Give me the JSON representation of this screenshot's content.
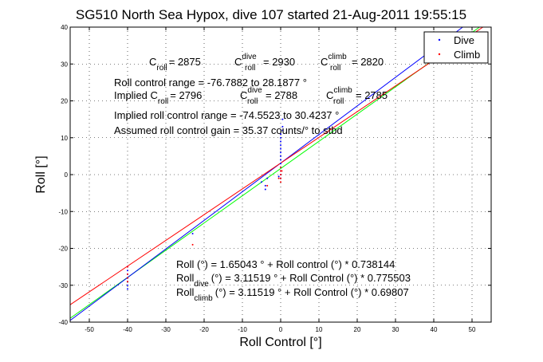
{
  "chart_data": {
    "type": "scatter",
    "title": "SG510 North Sea Hypox, dive 107 started 21-Aug-2011 19:55:15",
    "xlabel": "Roll Control [°]",
    "ylabel": "Roll [°]",
    "xlim": [
      -55,
      55
    ],
    "ylim": [
      -40,
      40
    ],
    "xticks": [
      -50,
      -40,
      -30,
      -20,
      -10,
      0,
      10,
      20,
      30,
      40,
      50
    ],
    "yticks": [
      -40,
      -30,
      -20,
      -10,
      0,
      10,
      20,
      30,
      40
    ],
    "grid": true,
    "legend_position": "top-right",
    "legend": [
      {
        "label": "Dive",
        "color": "#0000ff"
      },
      {
        "label": "Climb",
        "color": "#ff0000"
      }
    ],
    "series": [
      {
        "name": "Dive",
        "color": "#0000ff",
        "points": [
          [
            -40,
            -25
          ],
          [
            -40,
            -26
          ],
          [
            -40,
            -27
          ],
          [
            -40,
            -28
          ],
          [
            -40,
            -29
          ],
          [
            -40,
            -30
          ],
          [
            -40,
            -31
          ],
          [
            -23,
            -16
          ],
          [
            -5,
            -2
          ],
          [
            -4,
            -3
          ],
          [
            -4,
            -4
          ],
          [
            -3.5,
            -1
          ],
          [
            -0.5,
            -0.5
          ],
          [
            0,
            -1
          ],
          [
            0,
            0
          ],
          [
            0,
            1
          ],
          [
            0,
            2
          ],
          [
            0,
            3
          ],
          [
            0,
            4
          ],
          [
            0,
            5
          ],
          [
            0,
            6
          ],
          [
            0,
            7
          ],
          [
            0,
            8
          ],
          [
            0,
            9
          ],
          [
            0,
            10
          ],
          [
            0,
            11
          ],
          [
            0.5,
            12
          ],
          [
            0.5,
            13
          ],
          [
            0.5,
            15
          ]
        ]
      },
      {
        "name": "Climb",
        "color": "#ff0000",
        "points": [
          [
            -40,
            -25
          ],
          [
            -40,
            -27
          ],
          [
            -40,
            -28
          ],
          [
            -40,
            -29
          ],
          [
            -23,
            -19
          ],
          [
            -3.5,
            -3
          ],
          [
            -0.5,
            -1
          ],
          [
            0,
            -2
          ],
          [
            0,
            -1
          ],
          [
            0,
            0
          ],
          [
            0,
            1
          ],
          [
            0,
            2
          ],
          [
            0.3,
            1
          ]
        ]
      }
    ],
    "fit_lines": [
      {
        "name": "Roll fit",
        "color": "#00ff00",
        "intercept": 1.65043,
        "slope": 0.738144
      },
      {
        "name": "Dive fit",
        "color": "#0000ff",
        "intercept": 3.11519,
        "slope": 0.775503
      },
      {
        "name": "Climb fit",
        "color": "#ff0000",
        "intercept": 3.11519,
        "slope": 0.69807
      }
    ],
    "annotations": {
      "c_roll": {
        "label": "C",
        "sub": "roll",
        "value": "= 2875"
      },
      "c_roll_dive": {
        "label": "C",
        "sup": "dive",
        "sub": "roll",
        "value": "= 2930"
      },
      "c_roll_climb": {
        "label": "C",
        "sup": "climb",
        "sub": "roll",
        "value": "= 2820"
      },
      "range": "Roll control range = -76.7882 to 28.1877 °",
      "implied_c_roll": {
        "prefix": "Implied C",
        "sub": "roll",
        "value": "= 2796"
      },
      "implied_c_roll_dive": {
        "label": "C",
        "sup": "dive",
        "sub": "roll",
        "value": "= 2788"
      },
      "implied_c_roll_climb": {
        "label": "C",
        "sup": "climb",
        "sub": "roll",
        "value": "= 2785"
      },
      "implied_range": "Implied roll control range = -74.5523 to 30.4237 °",
      "gain": "Assumed roll control gain = 35.37 counts/° to stbd",
      "eq_roll": "Roll (°) = 1.65043 ° + Roll control (°) * 0.738144",
      "eq_dive": {
        "prefix": "Roll",
        "sub": "dive",
        "rest": "(°) = 3.11519 ° + Roll Control (°) * 0.775503"
      },
      "eq_climb": {
        "prefix": "Roll",
        "sub": "climb",
        "rest": "(°) = 3.11519 ° + Roll Control (°) * 0.69807"
      }
    }
  }
}
